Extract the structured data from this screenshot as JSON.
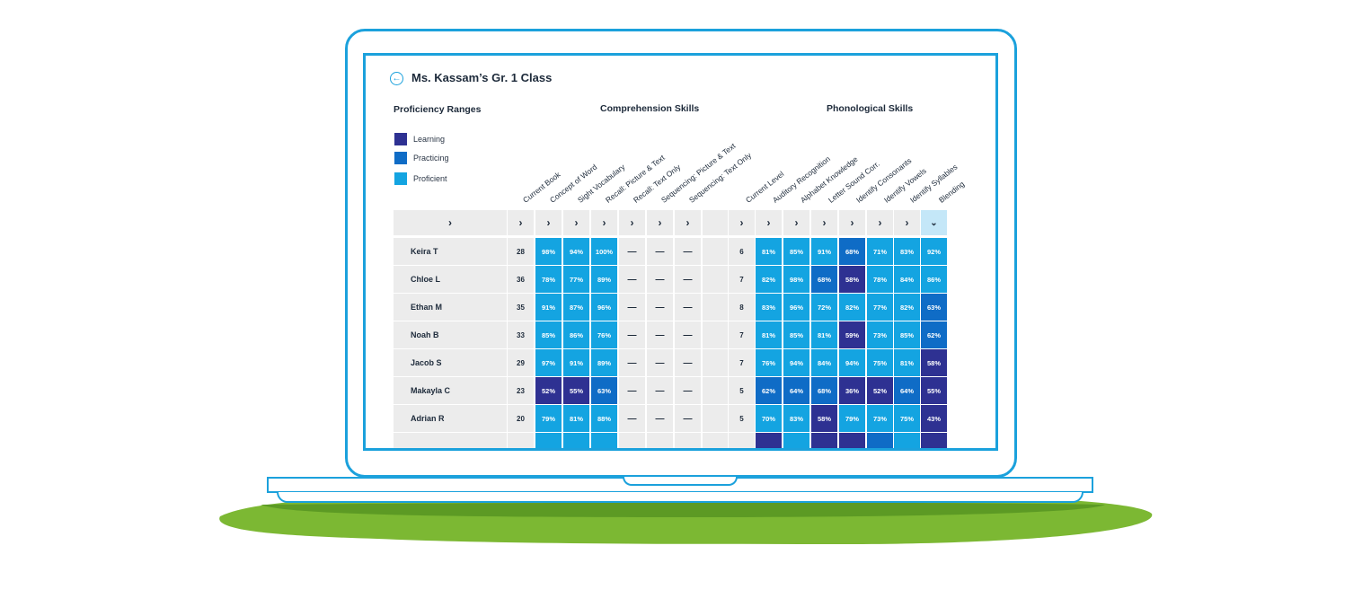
{
  "header": {
    "title": "Ms. Kassam’s Gr. 1 Class",
    "back_icon": "arrow-left-circle-icon"
  },
  "legend": {
    "title": "Proficiency Ranges",
    "items": [
      {
        "label": "Learning",
        "color": "#2e3192"
      },
      {
        "label": "Practicing",
        "color": "#0f6cc6"
      },
      {
        "label": "Proficient",
        "color": "#14a4e1"
      }
    ]
  },
  "sections": {
    "comprehension": "Comprehension Skills",
    "phonological": "Phonological Skills"
  },
  "columns": [
    "Current Book",
    "Concept of Word",
    "Sight Vocabulary",
    "Recall: Picture & Text",
    "Recall: Text Only",
    "Sequencing: Picture & Text",
    "Sequencing: Text Only",
    "Current Level",
    "Auditory Recognition",
    "Alphabet Knowledge",
    "Letter Sound Corr.",
    "Identify Consonants",
    "Identify Vowels",
    "Identify Syllables",
    "Blending"
  ],
  "header_row": {
    "name_icon": "›",
    "col_icon": "›",
    "active_icon": "⌄"
  },
  "colors": {
    "learning": "#2e3192",
    "practicing": "#0f6cc6",
    "proficient": "#14a4e1",
    "accent": "#1ba1dc"
  },
  "students": [
    {
      "name": "Keira T",
      "book": "28",
      "comp": [
        "98%",
        "94%",
        "100%"
      ],
      "level": "6",
      "phon": [
        "81%",
        "85%",
        "91%",
        "68%",
        "71%",
        "83%",
        "92%"
      ]
    },
    {
      "name": "Chloe L",
      "book": "36",
      "comp": [
        "78%",
        "77%",
        "89%"
      ],
      "level": "7",
      "phon": [
        "82%",
        "98%",
        "68%",
        "58%",
        "78%",
        "84%",
        "86%"
      ]
    },
    {
      "name": "Ethan M",
      "book": "35",
      "comp": [
        "91%",
        "87%",
        "96%"
      ],
      "level": "8",
      "phon": [
        "83%",
        "96%",
        "72%",
        "82%",
        "77%",
        "82%",
        "63%"
      ]
    },
    {
      "name": "Noah B",
      "book": "33",
      "comp": [
        "85%",
        "86%",
        "76%"
      ],
      "level": "7",
      "phon": [
        "81%",
        "85%",
        "81%",
        "59%",
        "73%",
        "85%",
        "62%"
      ]
    },
    {
      "name": "Jacob S",
      "book": "29",
      "comp": [
        "97%",
        "91%",
        "89%"
      ],
      "level": "7",
      "phon": [
        "76%",
        "94%",
        "84%",
        "94%",
        "75%",
        "81%",
        "58%"
      ]
    },
    {
      "name": "Makayla C",
      "book": "23",
      "comp": [
        "52%",
        "55%",
        "63%"
      ],
      "level": "5",
      "phon": [
        "62%",
        "64%",
        "68%",
        "36%",
        "52%",
        "64%",
        "55%"
      ]
    },
    {
      "name": "Adrian R",
      "book": "20",
      "comp": [
        "79%",
        "81%",
        "88%"
      ],
      "level": "5",
      "phon": [
        "70%",
        "83%",
        "58%",
        "79%",
        "73%",
        "75%",
        "43%"
      ]
    }
  ],
  "dash": "—"
}
